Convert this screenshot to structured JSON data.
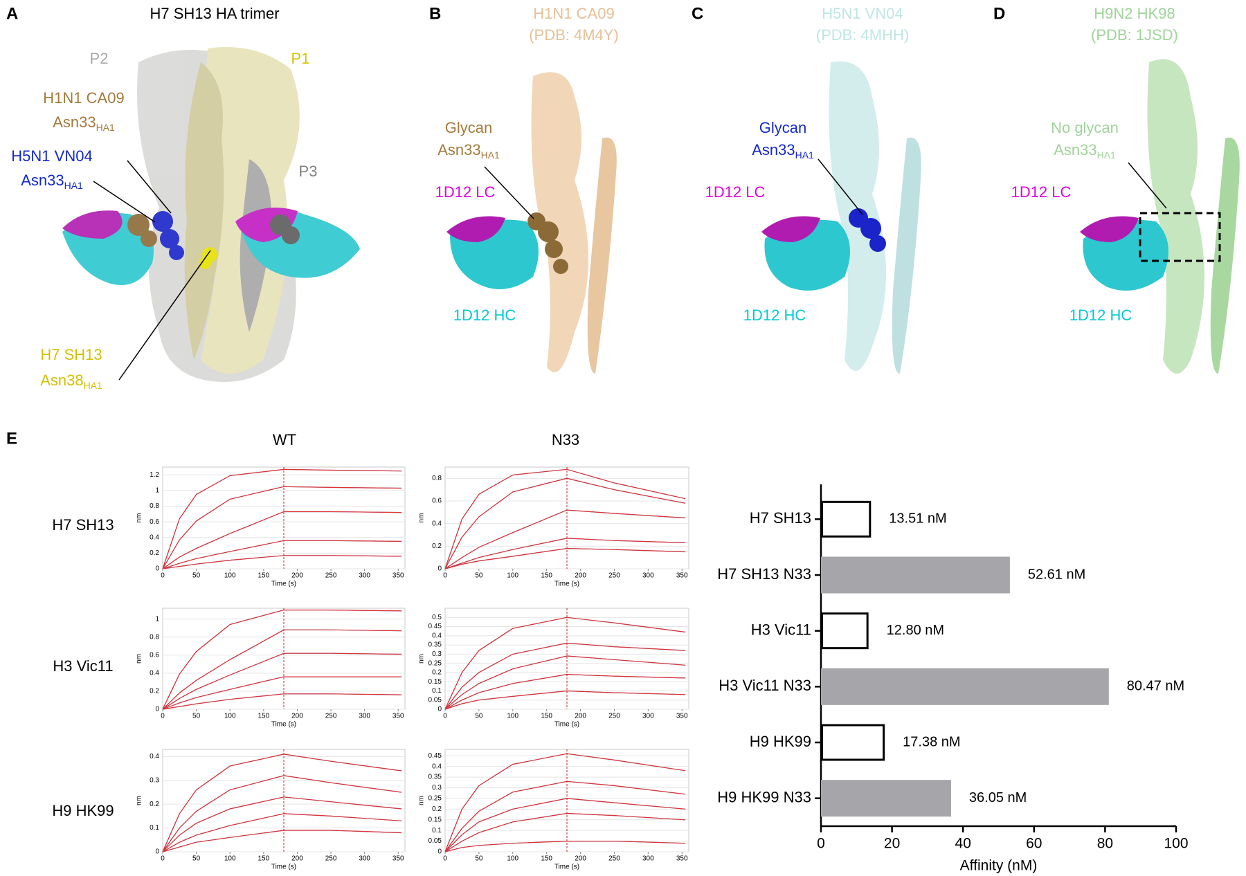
{
  "panels": {
    "a": {
      "label": "A",
      "title": "H7 SH13 HA trimer",
      "protomers": [
        "P2",
        "P1",
        "P3"
      ],
      "notes": [
        {
          "name": "H1N1 CA09",
          "residue": {
            "main": "Asn33",
            "sub": "HA1"
          }
        },
        {
          "name": "H5N1 VN04",
          "residue": {
            "main": "Asn33",
            "sub": "HA1"
          }
        },
        {
          "name": "H7 SH13",
          "residue": {
            "main": "Asn38",
            "sub": "HA1"
          }
        }
      ]
    },
    "b": {
      "label": "B",
      "title": "H1N1 CA09",
      "pdb": "(PDB: 4M4Y)",
      "glycan": "Glycan",
      "residue": {
        "main": "Asn33",
        "sub": "HA1"
      },
      "lc": "1D12 LC",
      "hc": "1D12 HC"
    },
    "c": {
      "label": "C",
      "title": "H5N1 VN04",
      "pdb": "(PDB: 4MHH)",
      "glycan": "Glycan",
      "residue": {
        "main": "Asn33",
        "sub": "HA1"
      },
      "lc": "1D12 LC",
      "hc": "1D12 HC"
    },
    "d": {
      "label": "D",
      "title": "H9N2 HK98",
      "pdb": "(PDB: 1JSD)",
      "glycan": "No glycan",
      "residue": {
        "main": "Asn33",
        "sub": "HA1"
      },
      "lc": "1D12 LC",
      "hc": "1D12 HC"
    }
  },
  "panel_e": {
    "label": "E",
    "columns": [
      "WT",
      "N33"
    ],
    "rows": [
      "H7 SH13",
      "H3 Vic11",
      "H9 HK99"
    ]
  },
  "chart_data": [
    {
      "type": "line",
      "x": [
        0,
        25,
        50,
        100,
        180,
        250,
        355
      ],
      "xlim": [
        0,
        360
      ],
      "xticks": [
        0,
        50,
        100,
        150,
        200,
        250,
        300,
        350
      ],
      "ylim": [
        0,
        1.3
      ],
      "yticks": [
        0,
        0.2,
        0.4,
        0.6,
        0.8,
        1.0,
        1.2
      ],
      "xlabel": "Time (s)",
      "ylabel": "nm",
      "vline": 180,
      "grid": true,
      "series": [
        {
          "color": "#e23030",
          "values": [
            0,
            0.64,
            0.95,
            1.19,
            1.27,
            1.26,
            1.25
          ]
        },
        {
          "color": "#e23030",
          "values": [
            0,
            0.37,
            0.61,
            0.89,
            1.05,
            1.04,
            1.03
          ]
        },
        {
          "color": "#e23030",
          "values": [
            0,
            0.15,
            0.26,
            0.45,
            0.73,
            0.73,
            0.72
          ]
        },
        {
          "color": "#e23030",
          "values": [
            0,
            0.07,
            0.13,
            0.22,
            0.36,
            0.36,
            0.35
          ]
        },
        {
          "color": "#e23030",
          "values": [
            0,
            0.03,
            0.06,
            0.11,
            0.17,
            0.17,
            0.16
          ]
        }
      ]
    },
    {
      "type": "line",
      "x": [
        0,
        25,
        50,
        100,
        180,
        250,
        355
      ],
      "xlim": [
        0,
        360
      ],
      "xticks": [
        0,
        50,
        100,
        150,
        200,
        250,
        300,
        350
      ],
      "ylim": [
        0,
        0.9
      ],
      "yticks": [
        0,
        0.2,
        0.4,
        0.6,
        0.8
      ],
      "xlabel": "Time (s)",
      "ylabel": "nm",
      "vline": 180,
      "grid": true,
      "series": [
        {
          "color": "#e23030",
          "values": [
            0,
            0.44,
            0.66,
            0.83,
            0.88,
            0.76,
            0.62
          ]
        },
        {
          "color": "#e23030",
          "values": [
            0,
            0.28,
            0.46,
            0.68,
            0.8,
            0.7,
            0.58
          ]
        },
        {
          "color": "#e23030",
          "values": [
            0,
            0.1,
            0.19,
            0.32,
            0.52,
            0.49,
            0.45
          ]
        },
        {
          "color": "#e23030",
          "values": [
            0,
            0.05,
            0.1,
            0.17,
            0.27,
            0.25,
            0.23
          ]
        },
        {
          "color": "#e23030",
          "values": [
            0,
            0.04,
            0.07,
            0.11,
            0.18,
            0.17,
            0.15
          ]
        }
      ]
    },
    {
      "type": "line",
      "x": [
        0,
        25,
        50,
        100,
        180,
        250,
        355
      ],
      "xlim": [
        0,
        360
      ],
      "xticks": [
        0,
        50,
        100,
        150,
        200,
        250,
        300,
        350
      ],
      "ylim": [
        0,
        1.12
      ],
      "yticks": [
        0,
        0.2,
        0.4,
        0.6,
        0.8,
        1.0
      ],
      "xlabel": "Time (s)",
      "ylabel": "nm",
      "vline": 180,
      "grid": true,
      "series": [
        {
          "color": "#e23030",
          "values": [
            0,
            0.39,
            0.64,
            0.94,
            1.1,
            1.1,
            1.09
          ]
        },
        {
          "color": "#e23030",
          "values": [
            0,
            0.18,
            0.32,
            0.55,
            0.88,
            0.88,
            0.87
          ]
        },
        {
          "color": "#e23030",
          "values": [
            0,
            0.12,
            0.22,
            0.38,
            0.62,
            0.62,
            0.61
          ]
        },
        {
          "color": "#e23030",
          "values": [
            0,
            0.07,
            0.13,
            0.22,
            0.36,
            0.36,
            0.36
          ]
        },
        {
          "color": "#e23030",
          "values": [
            0,
            0.03,
            0.06,
            0.11,
            0.17,
            0.17,
            0.16
          ]
        }
      ]
    },
    {
      "type": "line",
      "x": [
        0,
        25,
        50,
        100,
        180,
        250,
        355
      ],
      "xlim": [
        0,
        360
      ],
      "xticks": [
        0,
        50,
        100,
        150,
        200,
        250,
        300,
        350
      ],
      "ylim": [
        0,
        0.55
      ],
      "yticks": [
        0,
        0.05,
        0.1,
        0.15,
        0.2,
        0.25,
        0.3,
        0.35,
        0.4,
        0.45,
        0.5
      ],
      "xlabel": "Time (s)",
      "ylabel": "nm",
      "vline": 180,
      "grid": true,
      "series": [
        {
          "color": "#e23030",
          "values": [
            0,
            0.2,
            0.32,
            0.44,
            0.5,
            0.47,
            0.42
          ]
        },
        {
          "color": "#e23030",
          "values": [
            0,
            0.12,
            0.2,
            0.3,
            0.36,
            0.34,
            0.32
          ]
        },
        {
          "color": "#e23030",
          "values": [
            0,
            0.08,
            0.14,
            0.22,
            0.29,
            0.27,
            0.24
          ]
        },
        {
          "color": "#e23030",
          "values": [
            0,
            0.05,
            0.09,
            0.14,
            0.19,
            0.18,
            0.17
          ]
        },
        {
          "color": "#e23030",
          "values": [
            0,
            0.03,
            0.05,
            0.07,
            0.1,
            0.09,
            0.08
          ]
        }
      ]
    },
    {
      "type": "line",
      "x": [
        0,
        25,
        50,
        100,
        180,
        250,
        355
      ],
      "xlim": [
        0,
        360
      ],
      "xticks": [
        0,
        50,
        100,
        150,
        200,
        250,
        300,
        350
      ],
      "ylim": [
        0,
        0.43
      ],
      "yticks": [
        0,
        0.1,
        0.2,
        0.3,
        0.4
      ],
      "xlabel": "Time (s)",
      "ylabel": "nm",
      "vline": 180,
      "grid": true,
      "series": [
        {
          "color": "#e23030",
          "values": [
            0,
            0.16,
            0.26,
            0.36,
            0.41,
            0.38,
            0.34
          ]
        },
        {
          "color": "#e23030",
          "values": [
            0,
            0.1,
            0.17,
            0.26,
            0.32,
            0.29,
            0.25
          ]
        },
        {
          "color": "#e23030",
          "values": [
            0,
            0.07,
            0.12,
            0.18,
            0.23,
            0.21,
            0.18
          ]
        },
        {
          "color": "#e23030",
          "values": [
            0,
            0.04,
            0.07,
            0.11,
            0.16,
            0.15,
            0.13
          ]
        },
        {
          "color": "#e23030",
          "values": [
            0,
            0.02,
            0.04,
            0.06,
            0.09,
            0.09,
            0.08
          ]
        }
      ]
    },
    {
      "type": "line",
      "x": [
        0,
        25,
        50,
        100,
        180,
        250,
        355
      ],
      "xlim": [
        0,
        360
      ],
      "xticks": [
        0,
        50,
        100,
        150,
        200,
        250,
        300,
        350
      ],
      "ylim": [
        0,
        0.48
      ],
      "yticks": [
        0,
        0.05,
        0.1,
        0.15,
        0.2,
        0.25,
        0.3,
        0.35,
        0.4,
        0.45
      ],
      "xlabel": "Time (s)",
      "ylabel": "nm",
      "vline": 180,
      "grid": true,
      "series": [
        {
          "color": "#e23030",
          "values": [
            0,
            0.2,
            0.31,
            0.41,
            0.46,
            0.43,
            0.38
          ]
        },
        {
          "color": "#e23030",
          "values": [
            0,
            0.11,
            0.19,
            0.28,
            0.33,
            0.31,
            0.27
          ]
        },
        {
          "color": "#e23030",
          "values": [
            0,
            0.08,
            0.14,
            0.2,
            0.25,
            0.23,
            0.2
          ]
        },
        {
          "color": "#e23030",
          "values": [
            0,
            0.05,
            0.09,
            0.14,
            0.18,
            0.17,
            0.15
          ]
        },
        {
          "color": "#e23030",
          "values": [
            0,
            0.02,
            0.03,
            0.04,
            0.05,
            0.05,
            0.04
          ]
        }
      ]
    },
    {
      "type": "bar",
      "orientation": "horizontal",
      "categories": [
        "H7 SH13",
        "H7 SH13 N33",
        "H3 Vic11",
        "H3 Vic11 N33",
        "H9 HK99",
        "H9 HK99 N33"
      ],
      "values": [
        13.51,
        52.61,
        12.8,
        80.47,
        17.38,
        36.05
      ],
      "value_labels": [
        "13.51 nM",
        "52.61 nM",
        "12.80 nM",
        "80.47 nM",
        "17.38 nM",
        "36.05 nM"
      ],
      "colors": [
        "#ffffff",
        "#a6a5aa",
        "#ffffff",
        "#a6a5aa",
        "#ffffff",
        "#a6a5aa"
      ],
      "edgecolors": [
        "#000000",
        "#a6a5aa",
        "#000000",
        "#a6a5aa",
        "#000000",
        "#a6a5aa"
      ],
      "xlim": [
        0,
        100
      ],
      "xticks": [
        0,
        20,
        40,
        60,
        80,
        100
      ],
      "xlabel": "Affinity (nM)"
    }
  ]
}
